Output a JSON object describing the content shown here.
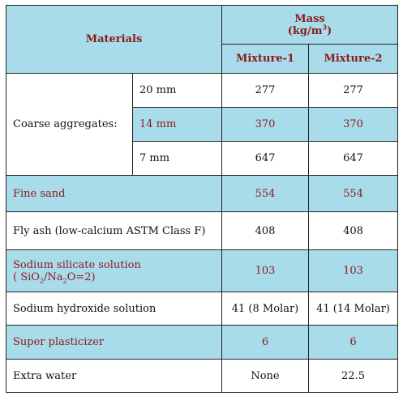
{
  "header": {
    "materials": "Materials",
    "mass_title": "Mass",
    "mass_unit_pre": "(kg/m",
    "mass_unit_sup": "3",
    "mass_unit_post": ")",
    "mixture1": "Mixture-1",
    "mixture2": "Mixture-2"
  },
  "coarse": {
    "label": "Coarse aggregates:",
    "rows": [
      {
        "size": "20 mm",
        "m1": "277",
        "m2": "277"
      },
      {
        "size": "14 mm",
        "m1": "370",
        "m2": "370"
      },
      {
        "size": "7 mm",
        "m1": "647",
        "m2": "647"
      }
    ]
  },
  "rows": {
    "fine_sand": {
      "label": "Fine sand",
      "m1": "554",
      "m2": "554"
    },
    "fly_ash": {
      "label": "Fly ash (low-calcium ASTM Class F)",
      "m1": "408",
      "m2": "408"
    },
    "sodium_silicate": {
      "label": "Sodium silicate solution",
      "formula_pre": "( SiO",
      "formula_sub1": "2",
      "formula_mid": "/Na",
      "formula_sub2": "2",
      "formula_post": "O=2)",
      "m1": "103",
      "m2": "103"
    },
    "sodium_hydroxide": {
      "label": "Sodium hydroxide solution",
      "m1": "41 (8 Molar)",
      "m2": "41 (14 Molar)"
    },
    "super_plasticizer": {
      "label": "Super plasticizer",
      "m1": "6",
      "m2": "6"
    },
    "extra_water": {
      "label": "Extra water",
      "m1": "None",
      "m2": "22.5"
    }
  }
}
